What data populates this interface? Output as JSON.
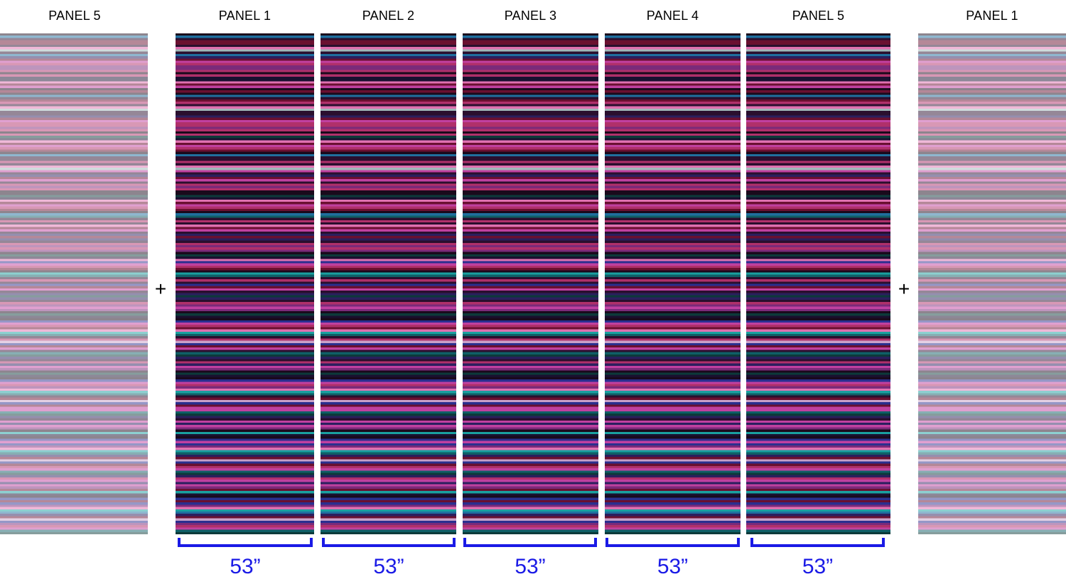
{
  "panel_headers": [
    "PANEL 5",
    "PANEL 1",
    "PANEL 2",
    "PANEL 3",
    "PANEL 4",
    "PANEL 5",
    "PANEL 1"
  ],
  "plus_sign": "+",
  "panel_widths": [
    "53”",
    "53”",
    "53”",
    "53”",
    "53”"
  ],
  "colors": {
    "dimension_blue": "#1a1ae6",
    "stripe_palette": [
      "#1a0a1c",
      "#2a0f2e",
      "#0f5f66",
      "#1aa0a0",
      "#1f6f9e",
      "#2a1f5e",
      "#0c3a3a",
      "#1a1030",
      "#6a1030",
      "#b0306a",
      "#c9a0c8",
      "#7a2a7a",
      "#2a2f8f",
      "#c040a0",
      "#e070b0",
      "#9fb8b8"
    ]
  }
}
